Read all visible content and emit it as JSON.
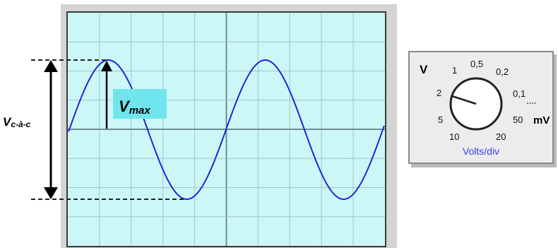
{
  "oscilloscope": {
    "colors": {
      "screen": "#ccf7f7",
      "grid": "#9fc6c8",
      "grid_axis": "#6e8e92",
      "frame": "#3b3b3b",
      "bezel": "#d4d4d4",
      "trace": "#2424d8"
    },
    "waveform": "sine",
    "divisions": {
      "horizontal": 10,
      "vertical": 8
    }
  },
  "annotations": {
    "vpp_label": "Vc-à-c",
    "vpp_main": "V",
    "vpp_sub": "c-à-c",
    "vmax_label": "Vmax",
    "vmax_main": "V",
    "vmax_sub": "max",
    "vmax_box_color": "#6fe6ee"
  },
  "knob": {
    "title": "Volts/div",
    "title_color": "#3a3af0",
    "unit_v": "V",
    "unit_mv": "mV",
    "scale": [
      "1",
      "0,5",
      "0,2",
      "0,1",
      "50",
      "20",
      "10",
      "5",
      "2"
    ],
    "selected": "2"
  }
}
